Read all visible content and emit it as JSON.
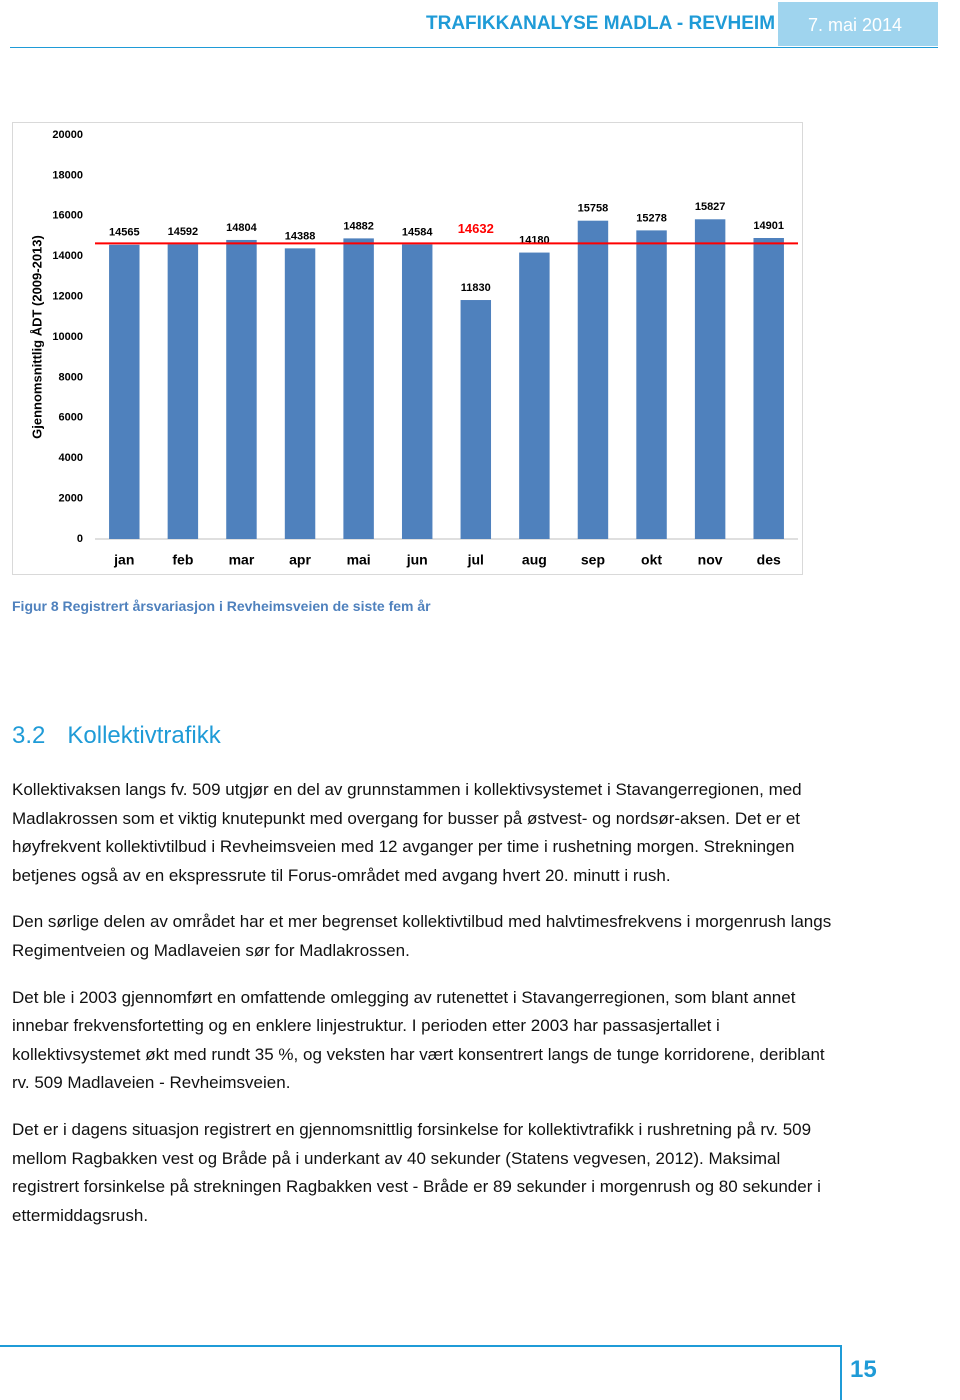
{
  "header": {
    "title": "TRAFIKKANALYSE MADLA - REVHEIM",
    "date": "7. mai 2014"
  },
  "chart_data": {
    "type": "bar",
    "y_label": "Gjennomsnittlig ÅDT (2009-2013)",
    "categories": [
      "jan",
      "feb",
      "mar",
      "apr",
      "mai",
      "jun",
      "jul",
      "aug",
      "sep",
      "okt",
      "nov",
      "des"
    ],
    "values": [
      14565,
      14592,
      14804,
      14388,
      14882,
      14584,
      11830,
      14180,
      15758,
      15278,
      15827,
      14901
    ],
    "color": "#4f81bd",
    "reference_line": {
      "value": 14632,
      "color": "#ff0000"
    },
    "ylim": [
      0,
      20000
    ],
    "yticks": [
      0,
      2000,
      4000,
      6000,
      8000,
      10000,
      12000,
      14000,
      16000,
      18000,
      20000
    ],
    "grid": false
  },
  "caption": "Figur 8 Registrert årsvariasjon i Revheimsveien de siste fem år",
  "section": {
    "number": "3.2",
    "title": "Kollektivtrafikk"
  },
  "paragraphs": [
    "Kollektivaksen langs fv. 509 utgjør en del av grunnstammen i kollektivsystemet i Stavangerregionen, med Madlakrossen som et viktig knutepunkt med overgang for busser på østvest- og nordsør-aksen. Det er et høyfrekvent kollektivtilbud i Revheimsveien med 12 avganger per time i rushetning morgen. Strekningen betjenes også av en ekspressrute til Forus-området med avgang hvert 20. minutt i rush.",
    "Den sørlige delen av området har et mer begrenset kollektivtilbud med halvtimesfrekvens i morgenrush langs Regimentveien og Madlaveien sør for Madlakrossen.",
    "Det ble i 2003 gjennomført en omfattende omlegging av rutenettet i Stavangerregionen, som blant annet innebar frekvensfortetting og en enklere linjestruktur.  I perioden etter 2003 har passasjertallet i kollektivsystemet økt med rundt 35 %, og veksten har vært konsentrert langs de tunge korridorene, deriblant rv. 509 Madlaveien - Revheimsveien.",
    "Det er i dagens situasjon registrert en gjennomsnittlig forsinkelse for kollektivtrafikk i rushretning på rv. 509 mellom Ragbakken vest  og Bråde på i underkant av 40 sekunder (Statens vegvesen, 2012). Maksimal registrert forsinkelse på strekningen Ragbakken vest  - Bråde er 89 sekunder i morgenrush og 80 sekunder i ettermiddagsrush."
  ],
  "page_number": "15"
}
